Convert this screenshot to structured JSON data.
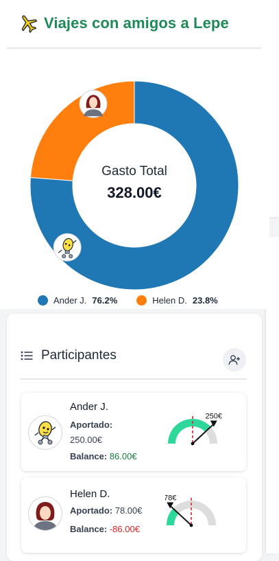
{
  "header": {
    "title": "Viajes con amigos a Lepe",
    "icon": "airplane-icon"
  },
  "summary": {
    "label": "Gasto Total",
    "total": "328.00€"
  },
  "chart_data": {
    "type": "pie",
    "style": "donut",
    "categories": [
      "Ander J.",
      "Helen D."
    ],
    "values": [
      76.2,
      23.8
    ],
    "colors": [
      "#1f77b4",
      "#ff7f0e"
    ],
    "center_label": "Gasto Total",
    "center_value": "328.00€",
    "legend": [
      {
        "name": "Ander J.",
        "value": "76.2%"
      },
      {
        "name": "Helen D.",
        "value": "23.8%"
      }
    ]
  },
  "participants_section": {
    "title": "Participantes",
    "list_icon": "list-icon",
    "add_icon": "add-user-icon"
  },
  "participants": [
    {
      "name": "Ander J.",
      "avatar": "lightbulb-avatar",
      "aportado_label": "Aportado:",
      "aportado": "250.00€",
      "balance_label": "Balance:",
      "balance": "86.00€",
      "balance_color": "#15803d",
      "gauge_label": "250€",
      "gauge_fraction": 0.762
    },
    {
      "name": "Helen D.",
      "avatar": "woman-avatar",
      "aportado_label": "Aportado:",
      "aportado": "78.00€",
      "balance_label": "Balance:",
      "balance": "-86.00€",
      "balance_color": "#dc2626",
      "gauge_label": "78€",
      "gauge_fraction": 0.238
    }
  ],
  "colors": {
    "title": "#1e8a57",
    "ander": "#1f77b4",
    "helen": "#ff7f0e",
    "gauge_fill": "#2ed89a",
    "gauge_track": "#dddddd",
    "gauge_mark": "#dc2626"
  }
}
